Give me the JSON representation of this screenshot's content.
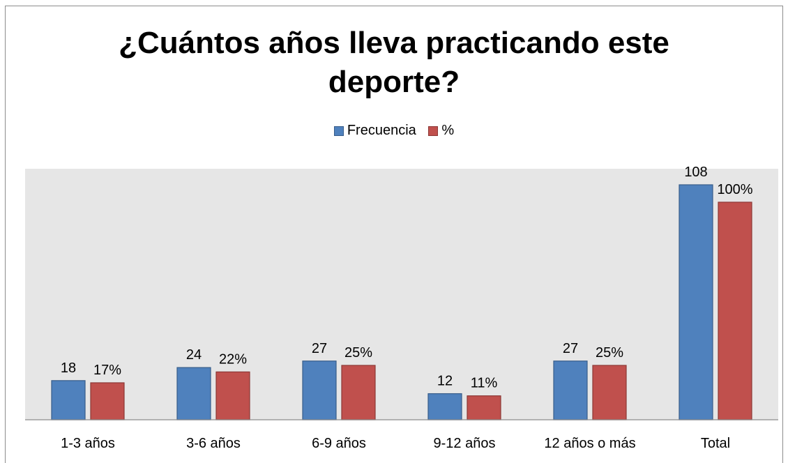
{
  "chart_data": {
    "type": "bar",
    "title": [
      "¿Cuántos años lleva practicando  este",
      "deporte?"
    ],
    "categories": [
      "1-3 años",
      "3-6 años",
      "6-9 años",
      "9-12 años",
      "12 años o más",
      "Total"
    ],
    "series": [
      {
        "name": "Frecuencia",
        "values": [
          18,
          24,
          27,
          12,
          27,
          108
        ],
        "labels": [
          "18",
          "24",
          "27",
          "12",
          "27",
          "108"
        ],
        "color": "#4f81bd",
        "border": "#385d8a"
      },
      {
        "name": "%",
        "values": [
          17,
          22,
          25,
          11,
          25,
          100
        ],
        "labels": [
          "17%",
          "22%",
          "25%",
          "11%",
          "25%",
          "100%"
        ],
        "color": "#c0504d",
        "border": "#8c3836"
      }
    ],
    "ylim": [
      0,
      120
    ],
    "grid": false,
    "legend_position": "top",
    "plot_background": "#e6e6e6"
  }
}
